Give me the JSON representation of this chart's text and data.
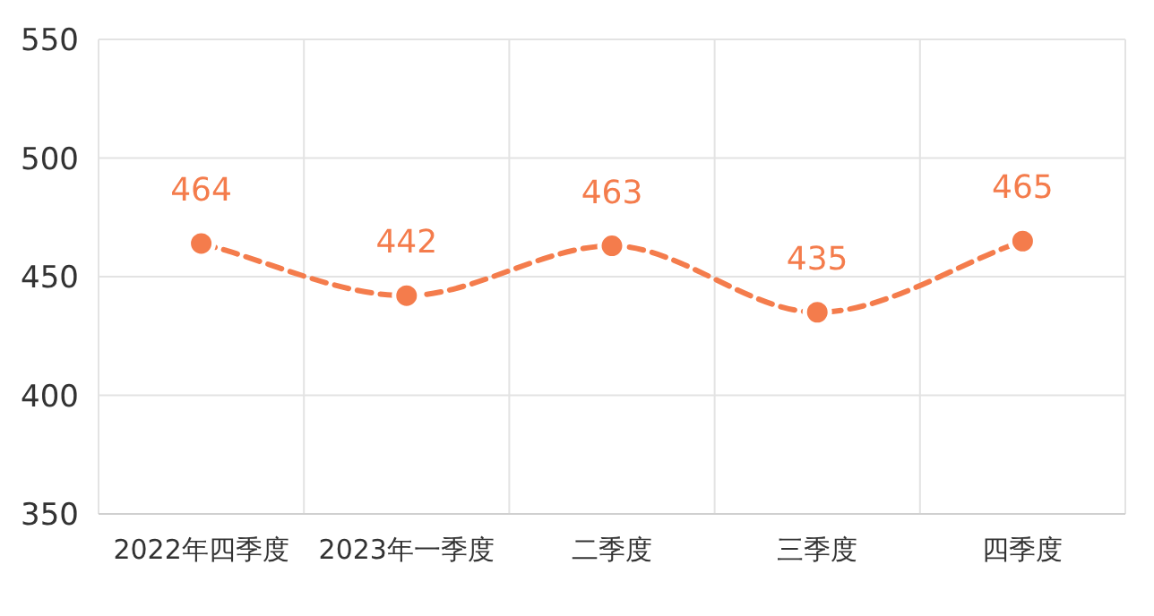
{
  "chart_data": {
    "type": "line",
    "categories": [
      "2022年四季度",
      "2023年一季度",
      "二季度",
      "三季度",
      "四季度"
    ],
    "series": [
      {
        "color": "#f47c4c",
        "values": [
          464,
          442,
          463,
          435,
          465
        ]
      }
    ],
    "ylim": [
      350,
      550
    ],
    "yticks": [
      350,
      400,
      450,
      500,
      550
    ],
    "grid": true,
    "data_labels": true,
    "marker": "circle",
    "line_style": "dashed"
  }
}
